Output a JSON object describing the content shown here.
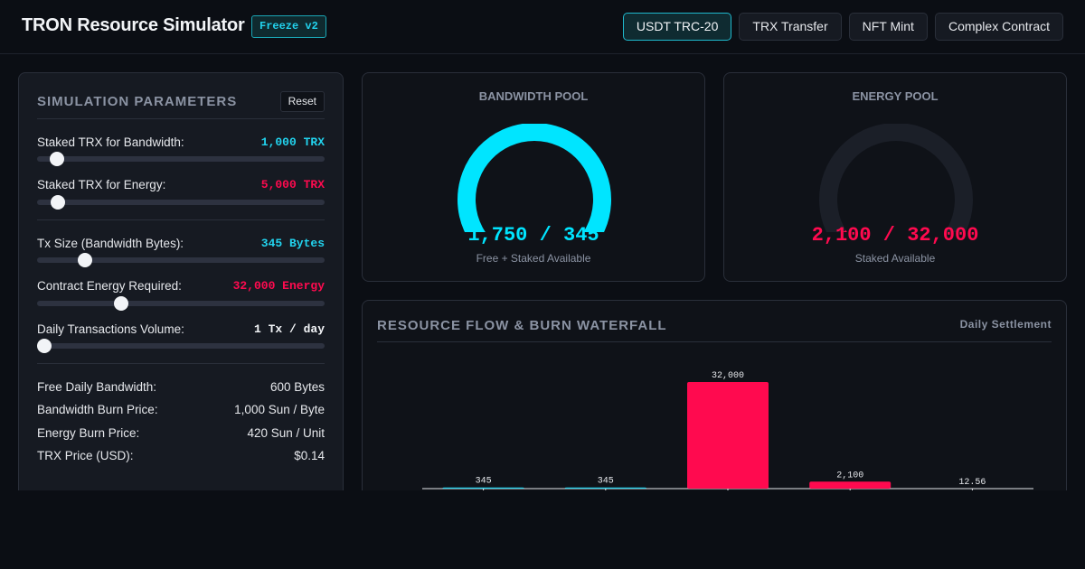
{
  "app": {
    "title": "TRON Resource Simulator",
    "badge": "Freeze v2",
    "tabs": [
      "USDT TRC-20",
      "TRX Transfer",
      "NFT Mint",
      "Complex Contract"
    ],
    "active_tab": "USDT TRC-20"
  },
  "colors": {
    "cyan": "#22d3ee",
    "red": "#ff0a4f",
    "white": "#f2f4f7",
    "panel": "#161a22",
    "muted": "#8b93a3"
  },
  "params": {
    "title": "SIMULATION PARAMETERS",
    "reset_label": "Reset",
    "sliders": [
      {
        "label": "Staked TRX for Bandwidth:",
        "value": "1,000 TRX",
        "color": "#22d3ee",
        "fraction": 0.045
      },
      {
        "label": "Staked TRX for Energy:",
        "value": "5,000 TRX",
        "color": "#ff0a4f",
        "fraction": 0.05
      },
      {
        "label": "Tx Size (Bandwidth Bytes):",
        "value": "345 Bytes",
        "color": "#22d3ee",
        "fraction": 0.15
      },
      {
        "label": "Contract Energy Required:",
        "value": "32,000 Energy",
        "color": "#ff0a4f",
        "fraction": 0.28
      },
      {
        "label": "Daily Transactions Volume:",
        "value": "1 Tx / day",
        "color": "#f2f4f7",
        "fraction": 0.0
      }
    ],
    "stats": [
      {
        "label": "Free Daily Bandwidth:",
        "value": "600 Bytes"
      },
      {
        "label": "Bandwidth Burn Price:",
        "value": "1,000 Sun / Byte"
      },
      {
        "label": "Energy Burn Price:",
        "value": "420 Sun / Unit"
      },
      {
        "label": "TRX Price (USD):",
        "value": "$0.14"
      }
    ]
  },
  "pools": {
    "bandwidth": {
      "title": "BANDWIDTH POOL",
      "value": "1,750 / 345",
      "sub": "Free + Staked Available",
      "color": "#00e5ff",
      "fill": 1.0
    },
    "energy": {
      "title": "ENERGY POOL",
      "value": "2,100 / 32,000",
      "sub": "Staked Available",
      "color": "#ff0a4f",
      "fill": 0.066
    }
  },
  "flow": {
    "title": "RESOURCE FLOW & BURN WATERFALL",
    "badge": "Daily Settlement"
  },
  "chart_data": {
    "type": "bar",
    "title": "RESOURCE FLOW & BURN WATERFALL",
    "values": [
      345,
      345,
      32000,
      2100,
      12.56
    ],
    "labels": [
      "345",
      "345",
      "32,000",
      "2,100",
      "12.56"
    ],
    "colors": [
      "#22d3ee",
      "#22d3ee",
      "#ff0a4f",
      "#ff0a4f",
      "#f2f4f7"
    ],
    "ylim": [
      0,
      32000
    ]
  }
}
